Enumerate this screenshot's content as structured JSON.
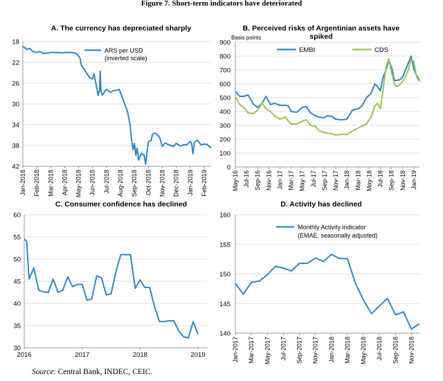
{
  "figure_title": "Figure 7. Short-term indicators have deteriorated",
  "source_label": "Source",
  "source_text": ": Central Bank, INDEC, CEIC.",
  "colors": {
    "blue": "#2e87c5",
    "green": "#98c552",
    "grid": "#d9d9d9",
    "axis": "#7f7f7f"
  },
  "chart_data": [
    {
      "id": "A",
      "type": "line",
      "title": "A. The currency has depreciated sharply",
      "ylabel_note": "",
      "ylim": [
        42,
        18
      ],
      "inverted": true,
      "yticks": [
        18,
        22,
        26,
        30,
        34,
        38,
        42
      ],
      "xlim": [
        0,
        13.5
      ],
      "xticks": [
        {
          "pos": 0,
          "label": "Jan-2018"
        },
        {
          "pos": 1,
          "label": "Feb-2018"
        },
        {
          "pos": 2,
          "label": "Mar-2018"
        },
        {
          "pos": 3,
          "label": "Apr-2018"
        },
        {
          "pos": 4,
          "label": "May-2018"
        },
        {
          "pos": 5,
          "label": "Jun-2018"
        },
        {
          "pos": 6,
          "label": "Jul-2018"
        },
        {
          "pos": 7,
          "label": "Aug-2018"
        },
        {
          "pos": 8,
          "label": "Sep-2018"
        },
        {
          "pos": 9,
          "label": "Oct-2018"
        },
        {
          "pos": 10,
          "label": "Nov-2018"
        },
        {
          "pos": 11,
          "label": "Dec-2018"
        },
        {
          "pos": 12,
          "label": "Jan-2019"
        },
        {
          "pos": 13,
          "label": "Feb-2019"
        }
      ],
      "legend": {
        "entries": [
          "ARS per USD",
          "(inverted scale)"
        ],
        "placement": "top-right"
      },
      "series": [
        {
          "name": "ARS per USD",
          "color": "#2e87c5",
          "x": [
            0,
            0.3,
            0.5,
            0.7,
            1.0,
            1.2,
            1.5,
            1.8,
            2.0,
            2.3,
            2.5,
            2.8,
            3.0,
            3.3,
            3.6,
            3.9,
            4.1,
            4.2,
            4.3,
            4.5,
            4.6,
            4.8,
            5.0,
            5.1,
            5.2,
            5.3,
            5.4,
            5.5,
            5.55,
            5.6,
            5.7,
            5.9,
            6.0,
            6.3,
            6.5,
            6.7,
            6.9,
            7.0,
            7.3,
            7.5,
            7.7,
            7.8,
            7.9,
            8.0,
            8.1,
            8.2,
            8.3,
            8.5,
            8.7,
            8.8,
            9.0,
            9.2,
            9.3,
            9.5,
            9.8,
            10.0,
            10.2,
            10.5,
            10.8,
            11.0,
            11.3,
            11.5,
            11.8,
            12.0,
            12.1,
            12.2,
            12.3,
            12.5,
            12.8,
            13.0,
            13.2,
            13.5
          ],
          "values": [
            18.9,
            19.5,
            19.3,
            19.9,
            20.1,
            19.9,
            20.3,
            20.2,
            20.1,
            20.1,
            20.1,
            20.2,
            20.1,
            20.1,
            20.1,
            20.4,
            21.2,
            22.6,
            22.9,
            23.8,
            24.2,
            25.0,
            25.2,
            24.2,
            25.6,
            26.9,
            28.4,
            27.3,
            23.7,
            27.6,
            28.3,
            27.5,
            27.2,
            27.8,
            27.4,
            27.4,
            27.2,
            27.8,
            30.0,
            31.4,
            34.2,
            37.0,
            38.8,
            37.6,
            39.9,
            38.5,
            40.8,
            39.5,
            39.9,
            41.6,
            37.3,
            37.0,
            35.8,
            35.6,
            36.4,
            38.2,
            37.5,
            37.9,
            38.2,
            37.6,
            38.1,
            37.9,
            37.8,
            37.2,
            37.6,
            39.6,
            37.4,
            37.0,
            37.9,
            37.7,
            37.8,
            38.5
          ]
        }
      ]
    },
    {
      "id": "B",
      "type": "line",
      "title_lines": [
        "B. Perceived risks of Argentinian assets have",
        "spiked"
      ],
      "ylabel_note": "Basis points",
      "ylim": [
        0,
        900
      ],
      "yticks": [
        0,
        100,
        200,
        300,
        400,
        500,
        600,
        700,
        800,
        900
      ],
      "xlim": [
        0,
        33
      ],
      "xticks": [
        {
          "pos": 0,
          "label": "May-16"
        },
        {
          "pos": 2,
          "label": "Jul-16"
        },
        {
          "pos": 4,
          "label": "Sep-16"
        },
        {
          "pos": 6,
          "label": "Nov-16"
        },
        {
          "pos": 8,
          "label": "Jan-17"
        },
        {
          "pos": 10,
          "label": "Mar-17"
        },
        {
          "pos": 12,
          "label": "May-17"
        },
        {
          "pos": 14,
          "label": "Jul-17"
        },
        {
          "pos": 16,
          "label": "Sep-17"
        },
        {
          "pos": 18,
          "label": "Nov-17"
        },
        {
          "pos": 20,
          "label": "Jan-18"
        },
        {
          "pos": 22,
          "label": "Mar-18"
        },
        {
          "pos": 24,
          "label": "May-18"
        },
        {
          "pos": 26,
          "label": "Jul-18"
        },
        {
          "pos": 28,
          "label": "Sep-18"
        },
        {
          "pos": 30,
          "label": "Nov-18"
        },
        {
          "pos": 32,
          "label": "Jan-19"
        }
      ],
      "legend": {
        "entries": [
          "EMBI",
          "CDS"
        ],
        "placement": "top"
      },
      "series": [
        {
          "name": "EMBI",
          "color": "#2e87c5",
          "x": [
            0,
            0.8,
            1.5,
            2.3,
            3.2,
            4.0,
            4.8,
            5.5,
            6.3,
            7.0,
            8.0,
            9.0,
            9.5,
            10.0,
            11.0,
            12.0,
            12.7,
            13.5,
            14.3,
            15.0,
            15.8,
            16.5,
            17.3,
            18.0,
            19.0,
            20.0,
            21.0,
            22.0,
            22.7,
            23.5,
            24.3,
            25.0,
            25.5,
            26.0,
            26.5,
            27.0,
            27.5,
            28.0,
            28.5,
            29.0,
            29.5,
            30.0,
            30.5,
            31.0,
            31.5,
            32.0,
            32.5,
            33.0
          ],
          "values": [
            545,
            510,
            510,
            520,
            455,
            430,
            460,
            510,
            450,
            460,
            445,
            445,
            440,
            400,
            395,
            430,
            435,
            390,
            370,
            360,
            355,
            370,
            365,
            345,
            340,
            345,
            410,
            420,
            440,
            500,
            530,
            600,
            580,
            550,
            650,
            700,
            770,
            720,
            625,
            625,
            630,
            650,
            700,
            750,
            800,
            705,
            660,
            625
          ]
        },
        {
          "name": "CDS",
          "color": "#98c552",
          "x": [
            0,
            0.8,
            1.5,
            2.3,
            3.2,
            4.0,
            4.8,
            5.5,
            6.3,
            7.0,
            8.0,
            9.0,
            9.5,
            10.0,
            11.0,
            12.0,
            12.7,
            13.5,
            14.3,
            15.0,
            15.8,
            16.5,
            17.3,
            18.0,
            19.0,
            20.0,
            21.0,
            22.0,
            22.7,
            23.5,
            24.3,
            25.0,
            25.5,
            26.0,
            26.5,
            27.0,
            27.5,
            28.0,
            28.5,
            29.0,
            29.5,
            30.0,
            30.5,
            31.0,
            31.5,
            32.0,
            32.5,
            33.0
          ],
          "values": [
            505,
            450,
            430,
            390,
            385,
            410,
            460,
            420,
            400,
            370,
            345,
            360,
            330,
            310,
            310,
            330,
            340,
            300,
            295,
            260,
            250,
            245,
            240,
            230,
            235,
            235,
            260,
            280,
            295,
            310,
            360,
            440,
            460,
            420,
            560,
            720,
            780,
            680,
            600,
            580,
            595,
            620,
            650,
            700,
            780,
            760,
            650,
            615
          ]
        }
      ]
    },
    {
      "id": "C",
      "type": "line",
      "title": "C. Consumer confidence has declined",
      "ylabel_note": "",
      "ylim": [
        30,
        60
      ],
      "yticks": [
        30,
        35,
        40,
        45,
        50,
        55,
        60
      ],
      "xlim": [
        0,
        38
      ],
      "xticks": [
        {
          "pos": 0,
          "label": "2016"
        },
        {
          "pos": 12,
          "label": "2017"
        },
        {
          "pos": 24,
          "label": "2018"
        },
        {
          "pos": 36,
          "label": "2019"
        }
      ],
      "legend": null,
      "series": [
        {
          "name": "Consumer confidence",
          "color": "#2e87c5",
          "x": [
            0,
            0.5,
            1,
            2,
            3,
            4,
            5,
            6,
            7,
            8,
            9,
            10,
            11,
            12,
            13,
            14,
            15,
            16,
            17,
            18,
            19,
            20,
            21,
            22,
            23,
            24,
            25,
            26,
            27,
            28,
            29,
            30,
            31,
            32,
            33,
            34,
            35,
            36
          ],
          "values": [
            54.5,
            54.0,
            45.5,
            48.0,
            43.0,
            42.6,
            42.5,
            45.5,
            42.5,
            43.0,
            46.0,
            43.8,
            44.3,
            44.3,
            40.7,
            41.0,
            46.2,
            45.8,
            41.9,
            42.2,
            47.2,
            51.0,
            51.0,
            51.0,
            43.4,
            45.3,
            43.6,
            43.6,
            39.2,
            35.9,
            35.9,
            36.1,
            36.1,
            33.8,
            32.5,
            32.2,
            35.9,
            33.0
          ]
        }
      ]
    },
    {
      "id": "D",
      "type": "line",
      "title": "D. Activity has declined",
      "ylabel_note": "",
      "ylim": [
        140,
        160
      ],
      "yticks": [
        140,
        145,
        150,
        155,
        160
      ],
      "xlim": [
        0,
        23
      ],
      "xticks": [
        {
          "pos": 0,
          "label": "Jan-2017"
        },
        {
          "pos": 2,
          "label": "Mar-2017"
        },
        {
          "pos": 4,
          "label": "May-2017"
        },
        {
          "pos": 6,
          "label": "Jul-2017"
        },
        {
          "pos": 8,
          "label": "Sep-2017"
        },
        {
          "pos": 10,
          "label": "Nov-2017"
        },
        {
          "pos": 12,
          "label": "Jan-2018"
        },
        {
          "pos": 14,
          "label": "Mar-2018"
        },
        {
          "pos": 16,
          "label": "May-2018"
        },
        {
          "pos": 18,
          "label": "Jul-2018"
        },
        {
          "pos": 20,
          "label": "Sep-2018"
        },
        {
          "pos": 22,
          "label": "Nov-2018"
        }
      ],
      "legend": {
        "entries": [
          "Monthly Activity indicator",
          "(EMAE, seasonally adjusted)"
        ],
        "placement": "top-left"
      },
      "series": [
        {
          "name": "Monthly Activity indicator (EMAE, seasonally adjusted)",
          "color": "#2e87c5",
          "x": [
            0,
            1,
            2,
            3,
            4,
            5,
            6,
            7,
            8,
            9,
            10,
            11,
            12,
            13,
            14,
            15,
            16,
            17,
            18,
            19,
            20,
            21,
            22,
            23
          ],
          "values": [
            148.4,
            146.6,
            148.6,
            148.8,
            149.9,
            151.3,
            151.0,
            150.5,
            151.8,
            151.8,
            152.7,
            152.1,
            153.3,
            152.6,
            152.6,
            148.4,
            145.6,
            143.3,
            144.6,
            145.9,
            143.1,
            143.6,
            140.7,
            141.6
          ]
        }
      ]
    }
  ]
}
